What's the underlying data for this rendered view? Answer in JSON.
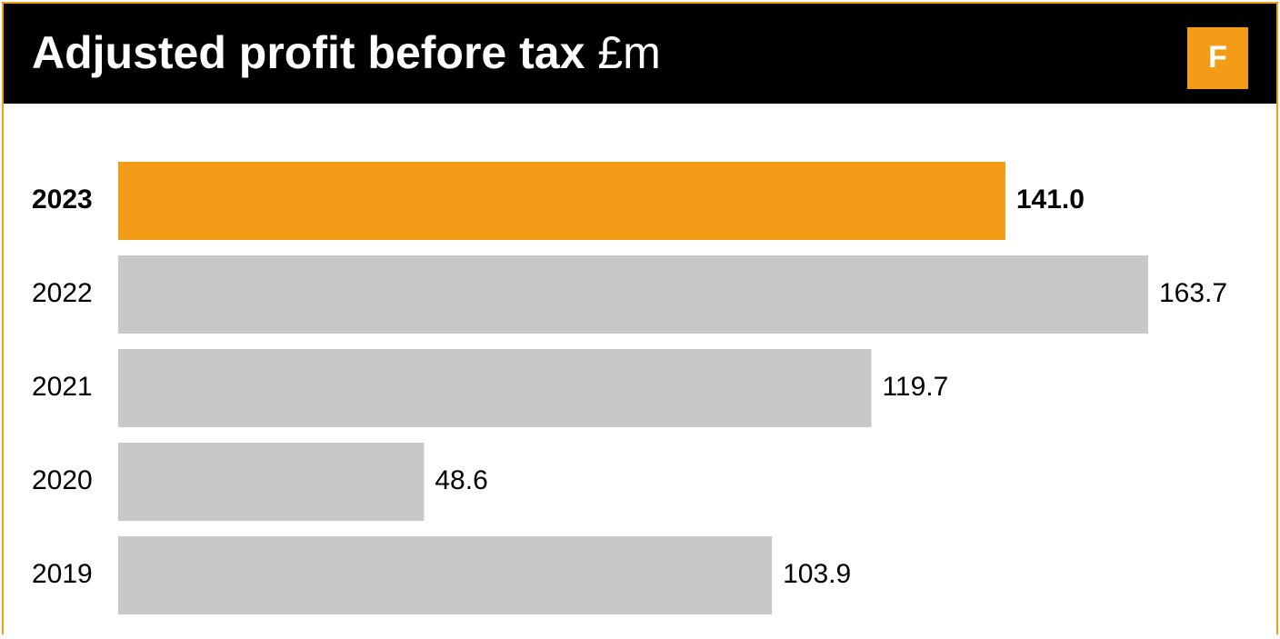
{
  "chart_data": {
    "type": "bar",
    "orientation": "horizontal",
    "title": "Adjusted profit before tax",
    "title_unit": "£m",
    "badge": "F",
    "categories": [
      "2023",
      "2022",
      "2021",
      "2020",
      "2019"
    ],
    "values": [
      141.0,
      163.7,
      119.7,
      48.6,
      103.9
    ],
    "value_labels": [
      "141.0",
      "163.7",
      "119.7",
      "48.6",
      "103.9"
    ],
    "highlight": [
      true,
      false,
      false,
      false,
      false
    ],
    "color": "#c8c8c8",
    "highlight_color": "#f39c17"
  }
}
